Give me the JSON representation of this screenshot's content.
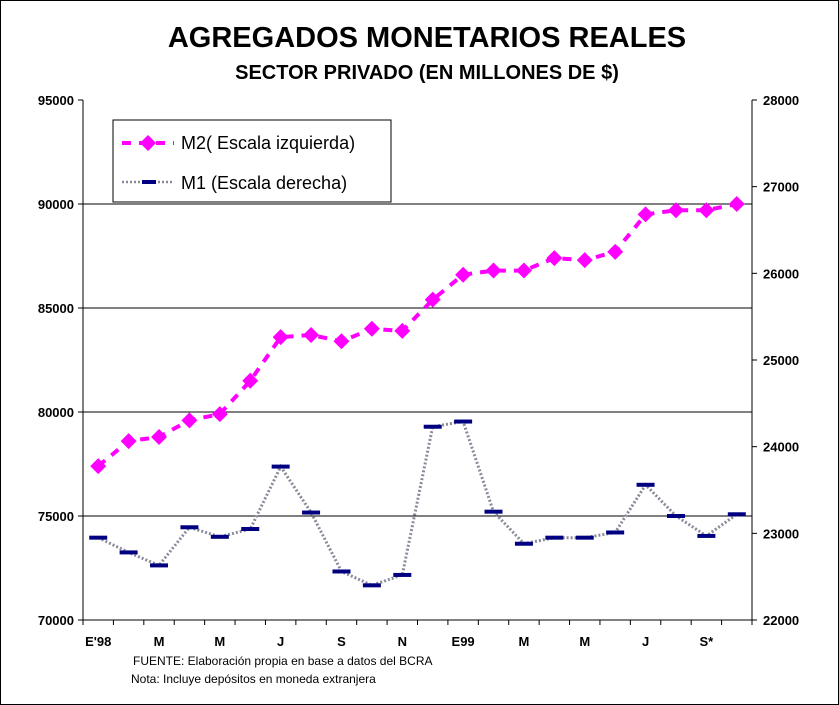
{
  "chart_data": {
    "type": "line",
    "title": "AGREGADOS MONETARIOS REALES",
    "subtitle": "SECTOR PRIVADO (EN MILLONES DE $)",
    "x_tick_labels": [
      "E'98",
      "M",
      "M",
      "J",
      "S",
      "N",
      "E99",
      "M",
      "M",
      "J",
      "S*"
    ],
    "y_left": {
      "min": 70000,
      "max": 95000,
      "ticks": [
        "70000",
        "75000",
        "80000",
        "85000",
        "90000",
        "95000"
      ]
    },
    "y_right": {
      "min": 22000,
      "max": 28000,
      "ticks": [
        "22000",
        "23000",
        "24000",
        "25000",
        "26000",
        "27000",
        "28000"
      ]
    },
    "grid": true,
    "legend_position": "top-left",
    "series": [
      {
        "name": "M2( Escala izquierda)",
        "axis": "left",
        "color": "#ff00ff",
        "style": "dashed-diamond",
        "values": [
          77400,
          78600,
          78800,
          79600,
          79900,
          81500,
          83600,
          83700,
          83400,
          84000,
          83900,
          85400,
          86600,
          86800,
          86800,
          87400,
          87300,
          87700,
          89500,
          89700,
          89700,
          90000
        ]
      },
      {
        "name": "M1 (Escala derecha)",
        "axis": "right",
        "color": "#000080",
        "style": "dotted-dash",
        "values": [
          22950,
          22780,
          22630,
          23070,
          22960,
          23050,
          23770,
          23240,
          22560,
          22400,
          22520,
          24230,
          24290,
          23250,
          22880,
          22950,
          22950,
          23010,
          23560,
          23200,
          22970,
          23220
        ]
      }
    ]
  },
  "notes": {
    "source": "FUENTE:  Elaboración propia en base a datos del BCRA",
    "note": "Nota:  Incluye depósitos en moneda extranjera"
  }
}
